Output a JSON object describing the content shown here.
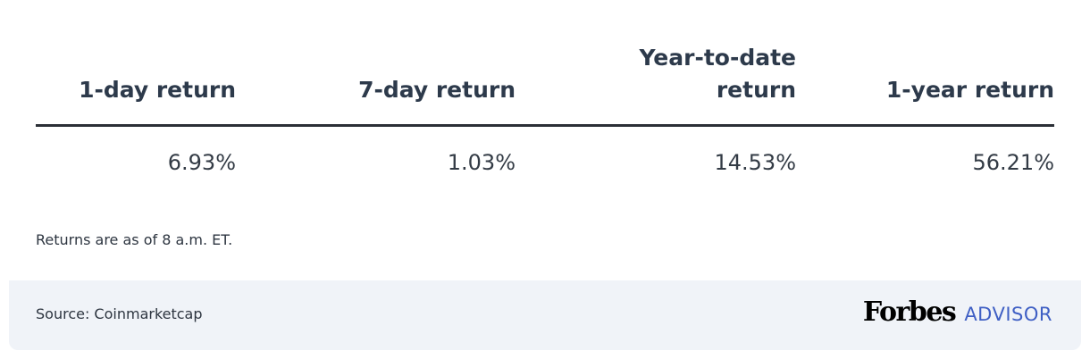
{
  "chart_data": {
    "type": "table",
    "columns": [
      "1-day return",
      "7-day return",
      "Year-to-date return",
      "1-year return"
    ],
    "rows": [
      [
        "6.93%",
        "1.03%",
        "14.53%",
        "56.21%"
      ]
    ]
  },
  "note": "Returns are as of 8 a.m. ET.",
  "footer": {
    "source": "Source: Coinmarketcap",
    "logo_forbes": "Forbes",
    "logo_advisor": "ADVISOR"
  },
  "colors": {
    "header_text": "#2d3a4b",
    "footer_bg": "#f0f3f8",
    "advisor_blue": "#3f5fc4"
  }
}
